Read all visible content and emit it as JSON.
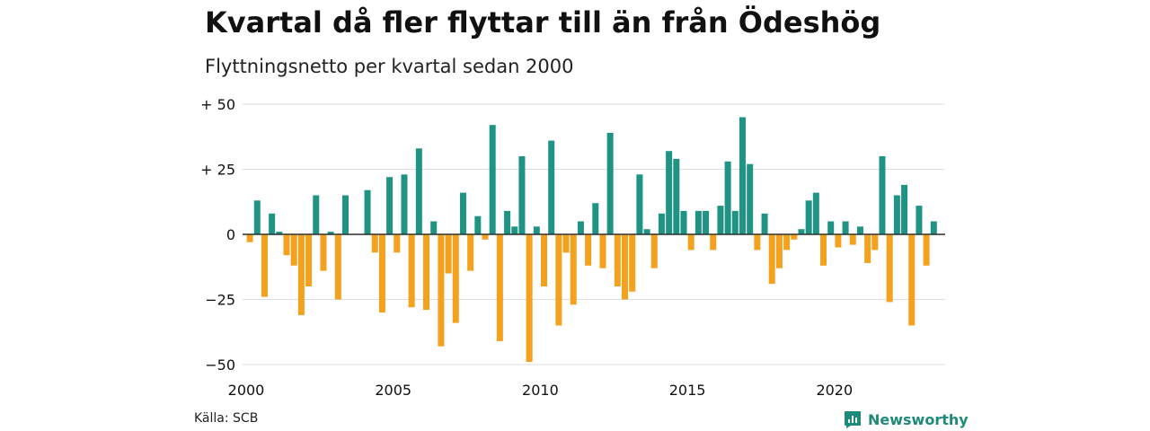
{
  "title": "Kvartal då fler flyttar till än från Ödeshög",
  "subtitle": "Flyttningsnetto per kvartal sedan 2000",
  "source": "Källa: SCB",
  "brand": "Newsworthy",
  "colors": {
    "positive": "#1f9485",
    "negative": "#f4a11d",
    "grid": "#dddddd",
    "zero": "#222222",
    "brand": "#1e8a79"
  },
  "chart_data": {
    "type": "bar",
    "title": "Kvartal då fler flyttar till än från Ödeshög",
    "subtitle": "Flyttningsnetto per kvartal sedan 2000",
    "xlabel": "",
    "ylabel": "",
    "ylim": [
      -50,
      50
    ],
    "yticks": [
      50,
      25,
      0,
      -25,
      -50
    ],
    "ytick_labels": [
      "+ 50",
      "+ 25",
      "0",
      "−25",
      "−50"
    ],
    "xticks": [
      2000,
      2005,
      2010,
      2015,
      2020
    ],
    "xtick_labels": [
      "2000",
      "2005",
      "2010",
      "2015",
      "2020"
    ],
    "grid": true,
    "start_year": 2000,
    "values": [
      -3,
      13,
      -24,
      8,
      1,
      -8,
      -12,
      -31,
      -20,
      15,
      -14,
      1,
      -25,
      15,
      0,
      0,
      17,
      -7,
      -30,
      22,
      -7,
      23,
      -28,
      33,
      -29,
      5,
      -43,
      -15,
      -34,
      16,
      -14,
      7,
      -2,
      42,
      -41,
      9,
      3,
      30,
      -49,
      3,
      -20,
      36,
      -35,
      -7,
      -27,
      5,
      -12,
      12,
      -13,
      39,
      -20,
      -25,
      -22,
      23,
      2,
      -13,
      8,
      32,
      29,
      9,
      -6,
      9,
      9,
      -6,
      11,
      28,
      9,
      45,
      27,
      -6,
      8,
      -19,
      -13,
      -6,
      -2,
      2,
      13,
      16,
      -12,
      5,
      -5,
      5,
      -4,
      3,
      -11,
      -6,
      30,
      -26,
      15,
      19,
      -35,
      11,
      -12,
      5
    ]
  }
}
